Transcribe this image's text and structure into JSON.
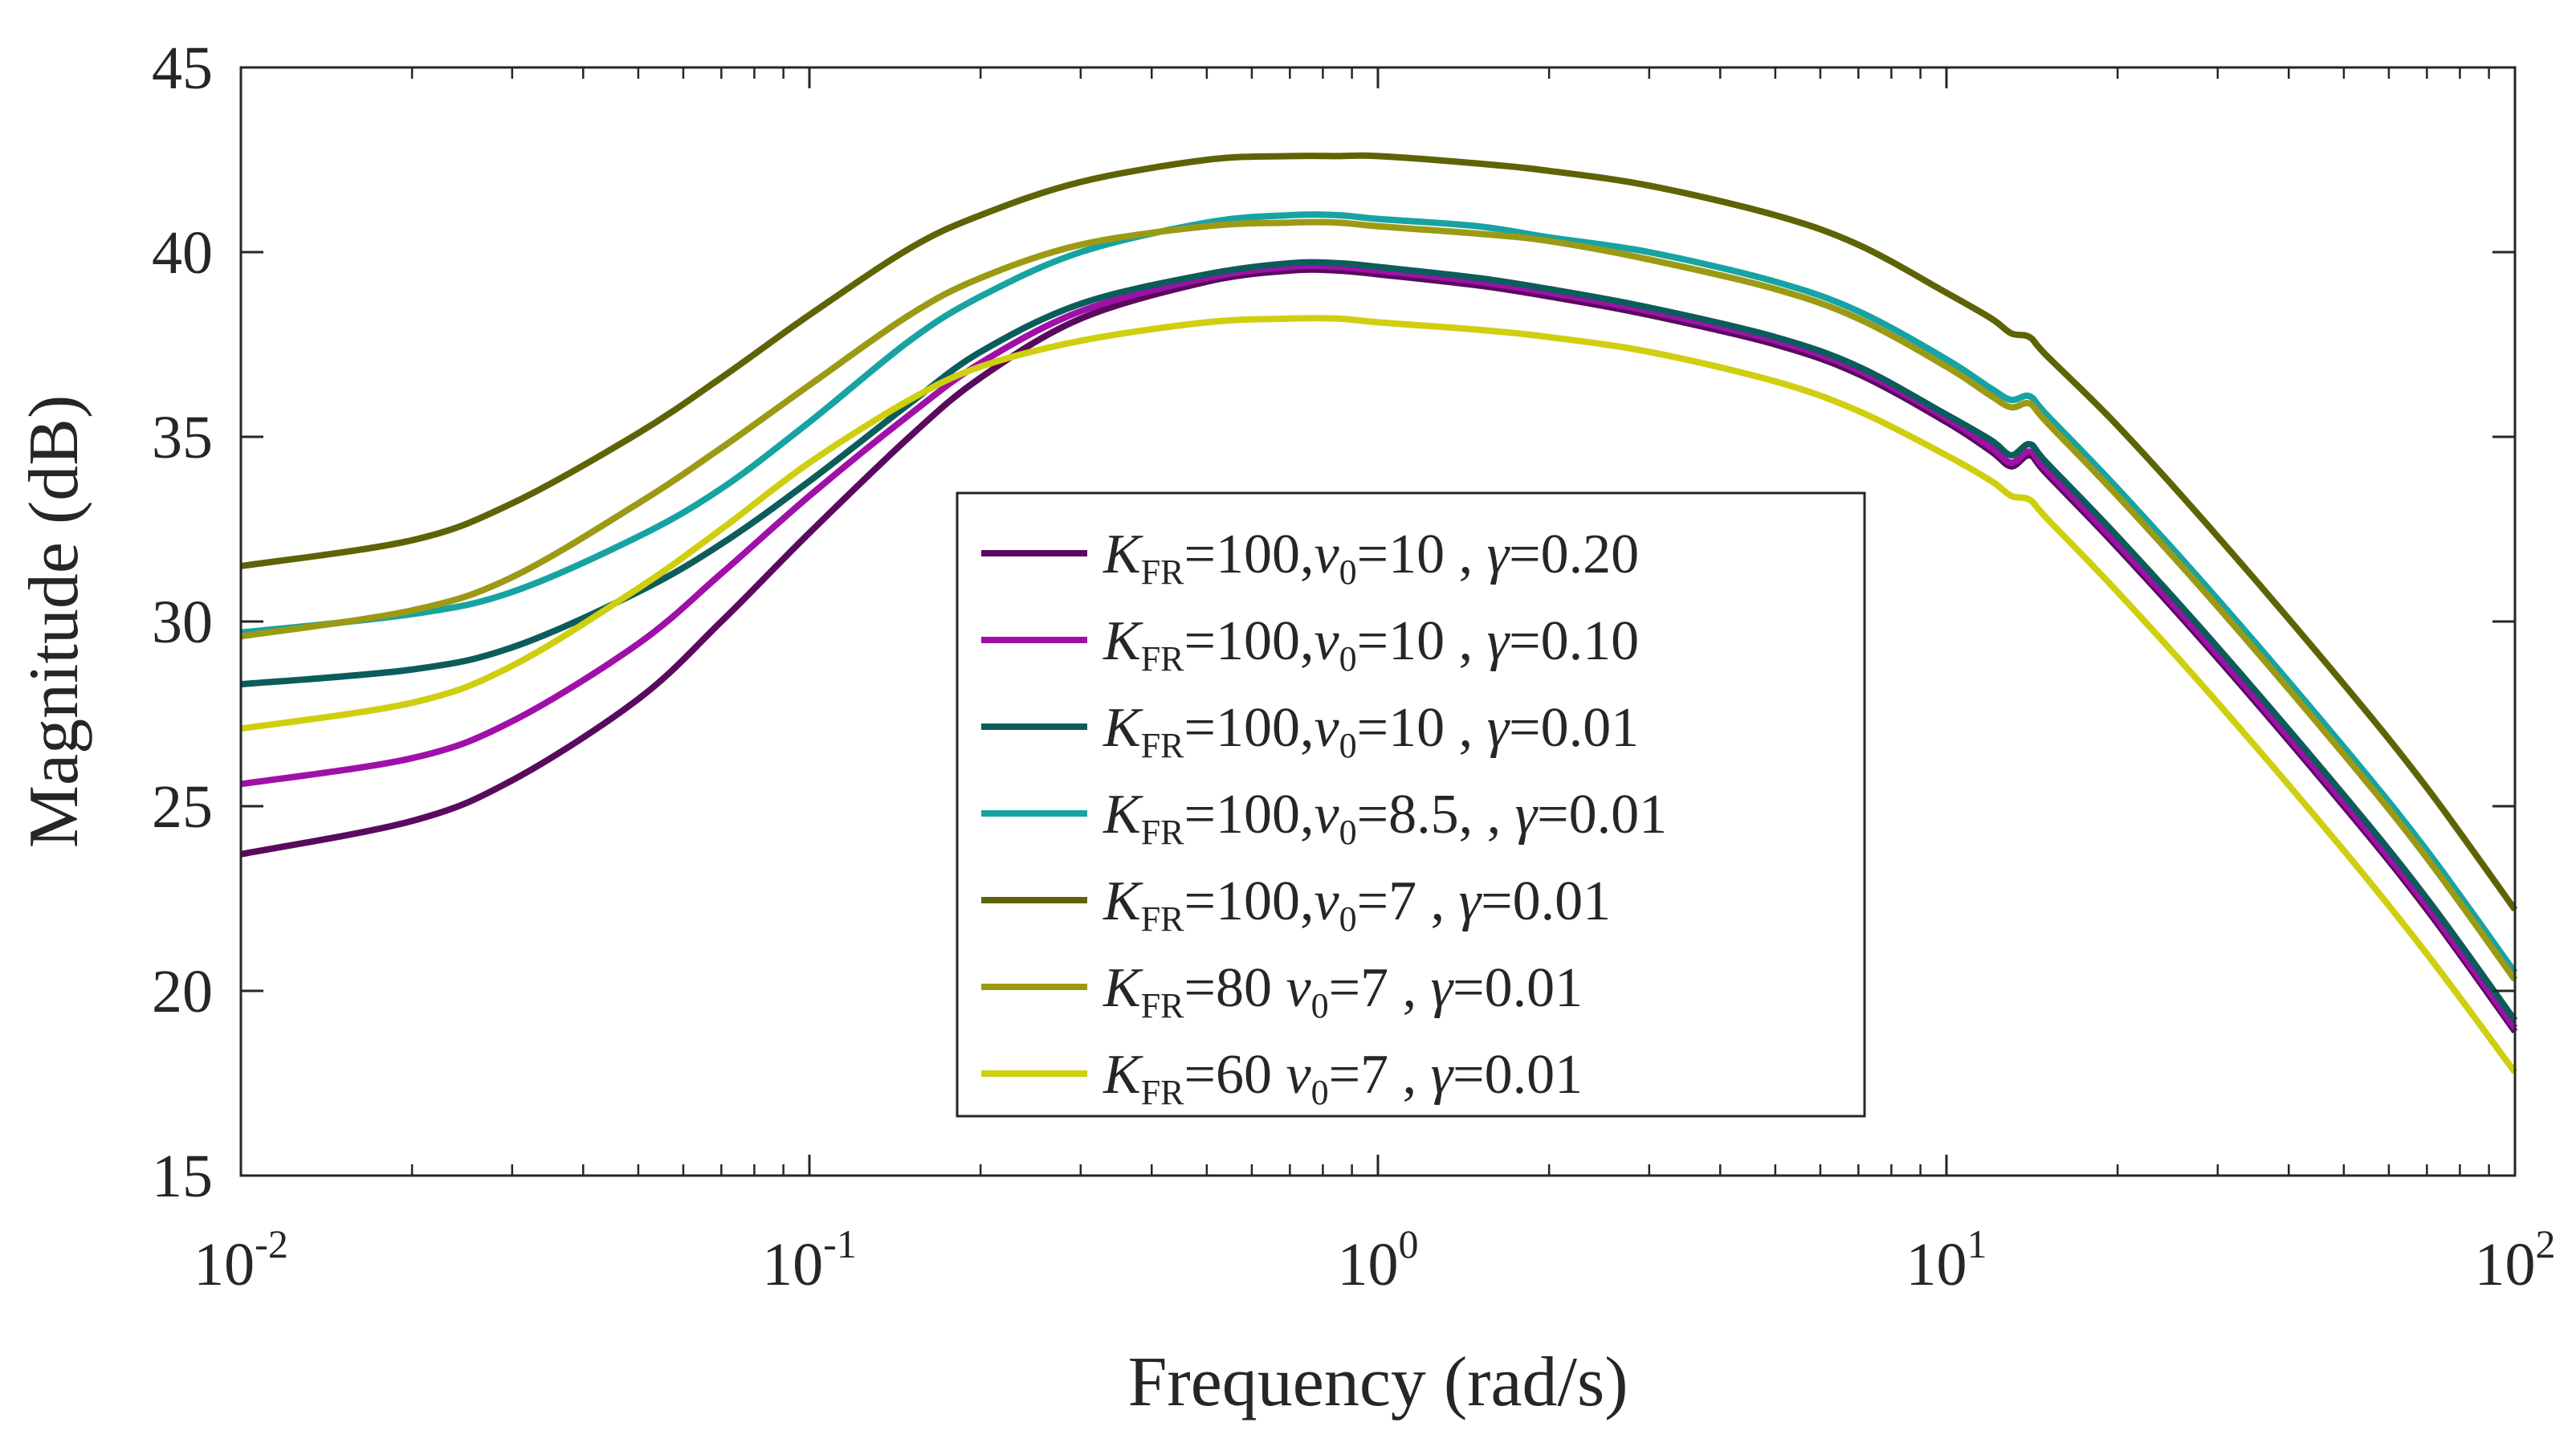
{
  "chart_data": {
    "type": "line",
    "xlabel": "Frequency (rad/s)",
    "ylabel": "Magnitude (dB)",
    "x_scale": "log",
    "xlim": [
      0.01,
      100
    ],
    "ylim": [
      15,
      45
    ],
    "x_ticks": [
      {
        "value": 0.01,
        "base": "10",
        "exp": "-2"
      },
      {
        "value": 0.1,
        "base": "10",
        "exp": "-1"
      },
      {
        "value": 1,
        "base": "10",
        "exp": "0"
      },
      {
        "value": 10,
        "base": "10",
        "exp": "1"
      },
      {
        "value": 100,
        "base": "10",
        "exp": "2"
      }
    ],
    "y_ticks": [
      "15",
      "20",
      "25",
      "30",
      "35",
      "40",
      "45"
    ],
    "grid": false,
    "legend_position": "center",
    "x": [
      0.01,
      0.02,
      0.03,
      0.05,
      0.07,
      0.1,
      0.15,
      0.2,
      0.3,
      0.5,
      0.7,
      0.85,
      1,
      1.5,
      2,
      3,
      5,
      7,
      10,
      12,
      13,
      14,
      15,
      20,
      30,
      50,
      70,
      100
    ],
    "series": [
      {
        "color": "#5a0a5e",
        "kfr_val": "100,",
        "v0_val": "=10 ",
        "gamma_val": "=0.20",
        "values": [
          23.7,
          24.6,
          25.7,
          27.9,
          30.0,
          32.4,
          35.0,
          36.6,
          38.2,
          39.2,
          39.5,
          39.5,
          39.4,
          39.1,
          38.8,
          38.3,
          37.5,
          36.7,
          35.4,
          34.6,
          34.2,
          34.5,
          34.0,
          32.0,
          29.0,
          25.0,
          22.2,
          18.9
        ]
      },
      {
        "color": "#a010a8",
        "kfr_val": "100,",
        "v0_val": "=10 ",
        "gamma_val": "=0.10",
        "values": [
          25.6,
          26.3,
          27.3,
          29.4,
          31.3,
          33.4,
          35.6,
          37.0,
          38.4,
          39.3,
          39.6,
          39.6,
          39.5,
          39.2,
          38.9,
          38.4,
          37.6,
          36.8,
          35.5,
          34.7,
          34.3,
          34.6,
          34.1,
          32.1,
          29.1,
          25.1,
          22.3,
          19.0
        ]
      },
      {
        "color": "#0d5c5c",
        "kfr_val": "100,",
        "v0_val": "=10 ",
        "gamma_val": "=0.01",
        "values": [
          28.3,
          28.7,
          29.3,
          30.8,
          32.1,
          33.8,
          35.9,
          37.3,
          38.6,
          39.4,
          39.7,
          39.7,
          39.6,
          39.3,
          39.0,
          38.5,
          37.7,
          36.9,
          35.6,
          34.9,
          34.5,
          34.8,
          34.3,
          32.3,
          29.3,
          25.3,
          22.5,
          19.2
        ]
      },
      {
        "color": "#17a3a3",
        "kfr_val": "100,",
        "v0_val": "=8.5,",
        "gamma_val": "=0.01",
        "values": [
          29.7,
          30.2,
          30.8,
          32.3,
          33.6,
          35.4,
          37.6,
          38.8,
          40.0,
          40.8,
          41.0,
          41.0,
          40.9,
          40.7,
          40.4,
          40.0,
          39.2,
          38.4,
          37.1,
          36.3,
          36.0,
          36.1,
          35.6,
          33.6,
          30.6,
          26.6,
          23.8,
          20.5
        ]
      },
      {
        "color": "#5e6405",
        "kfr_val": "100,",
        "v0_val": "=7  ",
        "gamma_val": "=0.01",
        "values": [
          31.5,
          32.2,
          33.2,
          35.1,
          36.6,
          38.3,
          40.1,
          41.0,
          41.9,
          42.5,
          42.6,
          42.6,
          42.6,
          42.4,
          42.2,
          41.8,
          41.0,
          40.2,
          38.9,
          38.2,
          37.8,
          37.7,
          37.2,
          35.3,
          32.3,
          28.3,
          25.5,
          22.2
        ]
      },
      {
        "color": "#9c9a14",
        "kfr_val": "80 ",
        "v0_val": "=7  ",
        "gamma_val": "=0.01",
        "values": [
          29.6,
          30.3,
          31.2,
          33.2,
          34.7,
          36.4,
          38.3,
          39.3,
          40.2,
          40.7,
          40.8,
          40.8,
          40.7,
          40.5,
          40.3,
          39.8,
          39.0,
          38.2,
          36.9,
          36.1,
          35.8,
          35.9,
          35.4,
          33.4,
          30.4,
          26.4,
          23.6,
          20.3
        ]
      },
      {
        "color": "#cfcf10",
        "kfr_val": "60 ",
        "v0_val": "=7  ",
        "gamma_val": "=0.01",
        "values": [
          27.1,
          27.8,
          28.8,
          30.9,
          32.5,
          34.3,
          36.0,
          36.9,
          37.6,
          38.1,
          38.2,
          38.2,
          38.1,
          37.9,
          37.7,
          37.3,
          36.5,
          35.7,
          34.5,
          33.8,
          33.4,
          33.3,
          32.8,
          30.8,
          27.8,
          23.8,
          21.0,
          17.8
        ]
      }
    ],
    "legend_tokens": {
      "k": "K",
      "k_sub": "FR",
      "eq": "=",
      "v": "v",
      "v_sub": "0",
      "gamma": "γ",
      "sep": " ,"
    }
  }
}
